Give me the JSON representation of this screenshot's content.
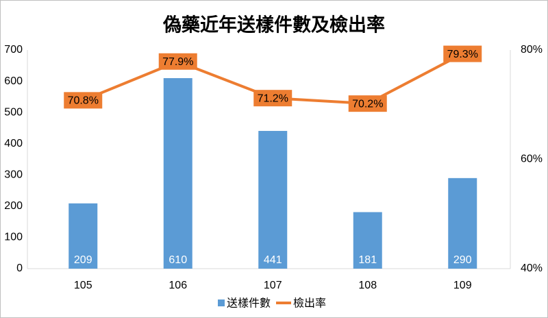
{
  "chart_data": {
    "type": "combo",
    "title": "偽藥近年送樣件數及檢出率",
    "categories": [
      "105",
      "106",
      "107",
      "108",
      "109"
    ],
    "series": [
      {
        "name": "送樣件數",
        "type": "bar",
        "color": "#5b9bd5",
        "values": [
          209,
          610,
          441,
          181,
          290
        ]
      },
      {
        "name": "檢出率",
        "type": "line",
        "axis": "y2",
        "color": "#ed7d31",
        "values": [
          70.8,
          77.9,
          71.2,
          70.2,
          79.3
        ],
        "value_labels": [
          "70.8%",
          "77.9%",
          "71.2%",
          "70.2%",
          "79.3%"
        ]
      }
    ],
    "ylim": [
      0,
      700
    ],
    "yticks": [
      0,
      100,
      200,
      300,
      400,
      500,
      600,
      700
    ],
    "y2lim": [
      40,
      80
    ],
    "y2ticks": [
      {
        "value": 40,
        "label": "40%"
      },
      {
        "value": 60,
        "label": "60%"
      },
      {
        "value": 80,
        "label": "80%"
      }
    ],
    "grid": false,
    "legend": "bottom"
  }
}
